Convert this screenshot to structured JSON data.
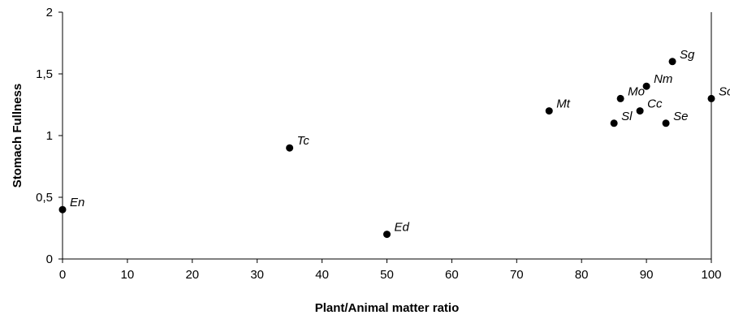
{
  "chart_data": {
    "type": "scatter",
    "title": "",
    "xlabel": "Plant/Animal matter ratio",
    "ylabel": "Stomach Fullness",
    "xlim": [
      0,
      100
    ],
    "ylim": [
      0,
      2
    ],
    "xticks": [
      0,
      10,
      20,
      30,
      40,
      50,
      60,
      70,
      80,
      90,
      100
    ],
    "xtick_labels": [
      "0",
      "10",
      "20",
      "30",
      "40",
      "50",
      "60",
      "70",
      "80",
      "90",
      "100"
    ],
    "yticks": [
      0,
      0.5,
      1,
      1.5,
      2
    ],
    "ytick_labels": [
      "0",
      "0,5",
      "1",
      "1,5",
      "2"
    ],
    "grid": false,
    "legend": "none",
    "marker_color": "#000000",
    "points": [
      {
        "label": "En",
        "x": 0,
        "y": 0.4
      },
      {
        "label": "Tc",
        "x": 35,
        "y": 0.9
      },
      {
        "label": "Ed",
        "x": 50,
        "y": 0.2
      },
      {
        "label": "Mt",
        "x": 75,
        "y": 1.2
      },
      {
        "label": "Sl",
        "x": 85,
        "y": 1.1
      },
      {
        "label": "Mo",
        "x": 86,
        "y": 1.3
      },
      {
        "label": "Cc",
        "x": 89,
        "y": 1.2
      },
      {
        "label": "Nm",
        "x": 90,
        "y": 1.4
      },
      {
        "label": "Se",
        "x": 93,
        "y": 1.1
      },
      {
        "label": "Sg",
        "x": 94,
        "y": 1.6
      },
      {
        "label": "So",
        "x": 100,
        "y": 1.3
      }
    ]
  }
}
